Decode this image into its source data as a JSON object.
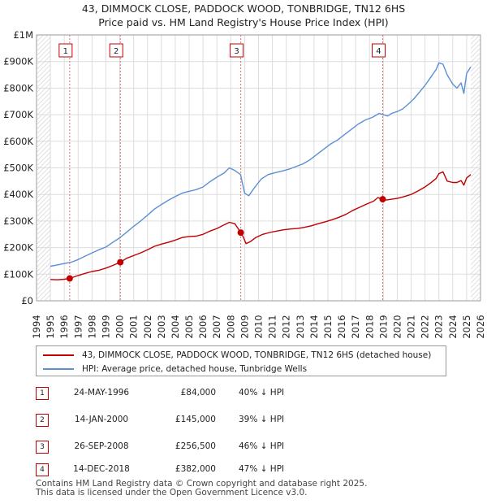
{
  "title_line1": "43, DIMMOCK CLOSE, PADDOCK WOOD, TONBRIDGE, TN12 6HS",
  "title_line2": "Price paid vs. HM Land Registry's House Price Index (HPI)",
  "footer_line1": "Contains HM Land Registry data © Crown copyright and database right 2025.",
  "footer_line2": "This data is licensed under the Open Government Licence v3.0.",
  "colors": {
    "property": "#c00000",
    "hpi": "#5b8fd4",
    "marker_line": "#e07070",
    "grid": "#dddddd",
    "future_hatch": "#cccccc"
  },
  "legend": {
    "property_label": "43, DIMMOCK CLOSE, PADDOCK WOOD, TONBRIDGE, TN12 6HS (detached house)",
    "hpi_label": "HPI: Average price, detached house, Tunbridge Wells"
  },
  "sales": [
    {
      "num": "1",
      "date": "24-MAY-1996",
      "price": "£84,000",
      "hpi": "40% ↓ HPI"
    },
    {
      "num": "2",
      "date": "14-JAN-2000",
      "price": "£145,000",
      "hpi": "39% ↓ HPI"
    },
    {
      "num": "3",
      "date": "26-SEP-2008",
      "price": "£256,500",
      "hpi": "46% ↓ HPI"
    },
    {
      "num": "4",
      "date": "14-DEC-2018",
      "price": "£382,000",
      "hpi": "47% ↓ HPI"
    }
  ],
  "chart_data": {
    "type": "line",
    "xlim": [
      1994,
      2026
    ],
    "ylim": [
      0,
      1000000
    ],
    "yticks": [
      0,
      100000,
      200000,
      300000,
      400000,
      500000,
      600000,
      700000,
      800000,
      900000,
      1000000
    ],
    "ytick_labels": [
      "£0",
      "£100K",
      "£200K",
      "£300K",
      "£400K",
      "£500K",
      "£600K",
      "£700K",
      "£800K",
      "£900K",
      "£1M"
    ],
    "xticks": [
      1994,
      1995,
      1996,
      1997,
      1998,
      1999,
      2000,
      2001,
      2002,
      2003,
      2004,
      2005,
      2006,
      2007,
      2008,
      2009,
      2010,
      2011,
      2012,
      2013,
      2014,
      2015,
      2016,
      2017,
      2018,
      2019,
      2020,
      2021,
      2022,
      2023,
      2024,
      2025,
      2026
    ],
    "xtick_labels": [
      "1994",
      "1995",
      "1996",
      "1997",
      "1998",
      "1999",
      "2000",
      "2001",
      "2002",
      "2003",
      "2004",
      "2005",
      "2006",
      "2007",
      "2008",
      "2009",
      "2010",
      "2011",
      "2012",
      "2013",
      "2014",
      "2015",
      "2016",
      "2017",
      "2018",
      "2019",
      "2020",
      "2021",
      "2022",
      "2023",
      "2024",
      "2025",
      "2026"
    ],
    "grid": true,
    "data_start": 1995.0,
    "data_end": 2025.3,
    "series": [
      {
        "name": "43, DIMMOCK CLOSE, PADDOCK WOOD, TONBRIDGE, TN12 6HS (detached house)",
        "x": [
          1995.0,
          1995.5,
          1996.0,
          1996.39,
          1997.0,
          1997.5,
          1998.0,
          1998.5,
          1999.0,
          1999.5,
          2000.04,
          2000.5,
          2001.0,
          2001.5,
          2002.0,
          2002.5,
          2003.0,
          2003.5,
          2004.0,
          2004.5,
          2005.0,
          2005.5,
          2006.0,
          2006.5,
          2007.0,
          2007.5,
          2007.9,
          2008.3,
          2008.72,
          2008.9,
          2009.1,
          2009.4,
          2009.8,
          2010.3,
          2010.8,
          2011.3,
          2011.8,
          2012.3,
          2012.8,
          2013.3,
          2013.8,
          2014.3,
          2014.8,
          2015.3,
          2015.8,
          2016.3,
          2016.8,
          2017.3,
          2017.8,
          2018.3,
          2018.6,
          2018.95,
          2019.2,
          2019.6,
          2020.0,
          2020.5,
          2021.0,
          2021.5,
          2022.0,
          2022.4,
          2022.8,
          2023.0,
          2023.3,
          2023.6,
          2024.0,
          2024.3,
          2024.6,
          2024.8,
          2025.0,
          2025.3
        ],
        "y": [
          80000,
          79000,
          81000,
          84000,
          95000,
          103000,
          110000,
          115000,
          123000,
          133000,
          145000,
          160000,
          170000,
          180000,
          192000,
          205000,
          213000,
          220000,
          228000,
          238000,
          242000,
          243000,
          250000,
          262000,
          272000,
          285000,
          295000,
          290000,
          256500,
          240000,
          215000,
          222000,
          238000,
          250000,
          257000,
          262000,
          267000,
          270000,
          272000,
          276000,
          282000,
          290000,
          297000,
          305000,
          314000,
          325000,
          340000,
          352000,
          364000,
          375000,
          388000,
          382000,
          379000,
          382000,
          385000,
          392000,
          400000,
          413000,
          428000,
          443000,
          460000,
          478000,
          485000,
          450000,
          445000,
          445000,
          452000,
          435000,
          462000,
          475000
        ]
      },
      {
        "name": "HPI: Average price, detached house, Tunbridge Wells",
        "x": [
          1995.0,
          1995.5,
          1996.0,
          1996.5,
          1997.0,
          1997.5,
          1998.0,
          1998.5,
          1999.0,
          1999.5,
          2000.0,
          2000.5,
          2001.0,
          2001.5,
          2002.0,
          2002.5,
          2003.0,
          2003.5,
          2004.0,
          2004.5,
          2005.0,
          2005.5,
          2006.0,
          2006.5,
          2007.0,
          2007.5,
          2007.9,
          2008.3,
          2008.7,
          2009.0,
          2009.3,
          2009.7,
          2010.2,
          2010.7,
          2011.2,
          2011.7,
          2012.2,
          2012.7,
          2013.2,
          2013.7,
          2014.2,
          2014.7,
          2015.2,
          2015.7,
          2016.2,
          2016.7,
          2017.2,
          2017.7,
          2018.2,
          2018.7,
          2019.0,
          2019.3,
          2019.6,
          2020.0,
          2020.4,
          2020.8,
          2021.2,
          2021.6,
          2022.0,
          2022.4,
          2022.8,
          2023.0,
          2023.3,
          2023.6,
          2024.0,
          2024.3,
          2024.6,
          2024.8,
          2025.0,
          2025.3
        ],
        "y": [
          130000,
          135000,
          140000,
          145000,
          155000,
          168000,
          180000,
          192000,
          202000,
          220000,
          237000,
          258000,
          280000,
          300000,
          322000,
          345000,
          362000,
          378000,
          392000,
          405000,
          412000,
          418000,
          428000,
          448000,
          465000,
          480000,
          500000,
          490000,
          475000,
          405000,
          395000,
          425000,
          458000,
          475000,
          482000,
          488000,
          495000,
          505000,
          515000,
          530000,
          550000,
          570000,
          590000,
          605000,
          625000,
          645000,
          665000,
          680000,
          690000,
          705000,
          700000,
          695000,
          705000,
          712000,
          722000,
          740000,
          760000,
          785000,
          810000,
          840000,
          870000,
          895000,
          890000,
          850000,
          815000,
          800000,
          820000,
          780000,
          855000,
          880000
        ]
      }
    ],
    "markers": [
      {
        "label": "1",
        "x": 1996.39,
        "y": 84000
      },
      {
        "label": "2",
        "x": 2000.04,
        "y": 145000
      },
      {
        "label": "3",
        "x": 2008.72,
        "y": 256500
      },
      {
        "label": "4",
        "x": 2018.95,
        "y": 382000
      }
    ]
  }
}
